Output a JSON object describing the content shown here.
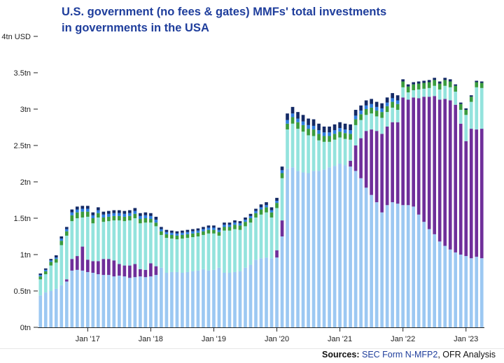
{
  "title": {
    "line1": "U.S. government (no fees & gates) MMFs' total investments",
    "line2": "in governments in the USA"
  },
  "source": {
    "label": "Sources:",
    "link_text": "SEC Form N-MFP2",
    "rest": ", OFR Analysis"
  },
  "colors": {
    "s0": "#9cc8f2",
    "s1": "#6f2f9a",
    "s2": "#93e3dd",
    "s3": "#3a9c3e",
    "s4": "#2f7fe0",
    "s5": "#142a66",
    "divider": "#ffffff",
    "title": "#1f3e9c"
  },
  "chart_data": {
    "type": "bar",
    "stacked": true,
    "title": "U.S. government (no fees & gates) MMFs' total investments in governments in the USA",
    "ylabel": "",
    "ylim": [
      0,
      4
    ],
    "yticks": [
      0,
      0.5,
      1,
      1.5,
      2,
      2.5,
      3,
      3.5,
      4
    ],
    "ytick_labels": [
      "0tn",
      "0.5tn",
      "1tn",
      "1.5tn",
      "2tn",
      "2.5tn",
      "3tn",
      "3.5tn",
      "4tn USD"
    ],
    "xtick_labels": [
      {
        "label": "Jan '17",
        "index": 9
      },
      {
        "label": "Jan '18",
        "index": 21
      },
      {
        "label": "Jan '19",
        "index": 33
      },
      {
        "label": "Jan '20",
        "index": 45
      },
      {
        "label": "Jan '21",
        "index": 57
      },
      {
        "label": "Jan '22",
        "index": 69
      },
      {
        "label": "Jan '23",
        "index": 81
      }
    ],
    "period": "Apr 2016 - Mar 2023, monthly",
    "series": [
      {
        "name": "series-1",
        "color": "#9cc8f2",
        "values": [
          0.44,
          0.48,
          0.5,
          0.53,
          0.58,
          0.63,
          0.78,
          0.79,
          0.78,
          0.76,
          0.75,
          0.73,
          0.72,
          0.72,
          0.7,
          0.71,
          0.7,
          0.68,
          0.69,
          0.7,
          0.69,
          0.7,
          0.72,
          0.82,
          0.75,
          0.76,
          0.76,
          0.75,
          0.76,
          0.77,
          0.78,
          0.8,
          0.78,
          0.79,
          0.82,
          0.75,
          0.75,
          0.76,
          0.77,
          0.82,
          0.86,
          0.93,
          0.95,
          0.96,
          0.95,
          0.96,
          1.25,
          2.18,
          2.2,
          2.15,
          2.13,
          2.12,
          2.15,
          2.15,
          2.17,
          2.2,
          2.22,
          2.25,
          2.23,
          2.21,
          2.15,
          2.05,
          1.92,
          1.82,
          1.72,
          1.58,
          1.68,
          1.72,
          1.7,
          1.68,
          1.68,
          1.66,
          1.55,
          1.45,
          1.35,
          1.28,
          1.18,
          1.12,
          1.07,
          1.03,
          1.0,
          0.98,
          0.95,
          0.97,
          0.95
        ]
      },
      {
        "name": "series-2",
        "color": "#6f2f9a",
        "values": [
          0,
          0,
          0,
          0,
          0,
          0.03,
          0.16,
          0.19,
          0.33,
          0.17,
          0.16,
          0.18,
          0.22,
          0.22,
          0.22,
          0.16,
          0.15,
          0.17,
          0.18,
          0.1,
          0.1,
          0.18,
          0.12,
          0,
          0,
          0,
          0,
          0,
          0,
          0,
          0,
          0,
          0,
          0,
          0,
          0,
          0,
          0,
          0,
          0,
          0,
          0,
          0,
          0,
          0,
          0.1,
          0.22,
          0,
          0,
          0,
          0,
          0,
          0,
          0,
          0,
          0,
          0,
          0,
          0,
          0.08,
          0.35,
          0.55,
          0.78,
          0.9,
          0.98,
          1.08,
          1.08,
          1.1,
          1.12,
          1.48,
          1.45,
          1.5,
          1.6,
          1.72,
          1.82,
          1.9,
          1.95,
          2.02,
          2.05,
          2.03,
          1.8,
          1.58,
          1.78,
          1.75,
          1.78
        ]
      },
      {
        "name": "series-3",
        "color": "#93e3dd",
        "values": [
          0.22,
          0.25,
          0.35,
          0.36,
          0.55,
          0.6,
          0.52,
          0.52,
          0.4,
          0.59,
          0.52,
          0.6,
          0.51,
          0.52,
          0.55,
          0.6,
          0.61,
          0.62,
          0.63,
          0.63,
          0.65,
          0.56,
          0.55,
          0.45,
          0.48,
          0.46,
          0.45,
          0.47,
          0.47,
          0.47,
          0.47,
          0.47,
          0.51,
          0.5,
          0.44,
          0.58,
          0.58,
          0.59,
          0.57,
          0.57,
          0.58,
          0.58,
          0.6,
          0.62,
          0.56,
          0.58,
          0.58,
          0.54,
          0.6,
          0.58,
          0.56,
          0.52,
          0.48,
          0.42,
          0.38,
          0.35,
          0.36,
          0.36,
          0.36,
          0.29,
          0.28,
          0.25,
          0.22,
          0.22,
          0.2,
          0.22,
          0.2,
          0.2,
          0.17,
          0.14,
          0.1,
          0.1,
          0.12,
          0.11,
          0.12,
          0.14,
          0.14,
          0.18,
          0.18,
          0.18,
          0.19,
          0.36,
          0.37,
          0.58,
          0.56
        ]
      },
      {
        "name": "series-4",
        "color": "#3a9c3e",
        "values": [
          0.04,
          0.04,
          0.05,
          0.05,
          0.06,
          0.06,
          0.08,
          0.08,
          0.08,
          0.07,
          0.07,
          0.06,
          0.06,
          0.06,
          0.06,
          0.06,
          0.06,
          0.06,
          0.06,
          0.06,
          0.06,
          0.05,
          0.05,
          0.05,
          0.05,
          0.05,
          0.05,
          0.05,
          0.05,
          0.05,
          0.05,
          0.05,
          0.05,
          0.05,
          0.05,
          0.05,
          0.05,
          0.06,
          0.06,
          0.06,
          0.06,
          0.06,
          0.07,
          0.07,
          0.07,
          0.07,
          0.07,
          0.08,
          0.09,
          0.09,
          0.09,
          0.09,
          0.09,
          0.09,
          0.08,
          0.08,
          0.08,
          0.08,
          0.08,
          0.08,
          0.08,
          0.08,
          0.08,
          0.08,
          0.08,
          0.08,
          0.08,
          0.08,
          0.08,
          0.08,
          0.08,
          0.08,
          0.08,
          0.08,
          0.08,
          0.08,
          0.08,
          0.08,
          0.08,
          0.08,
          0.08,
          0.07,
          0.07,
          0.07,
          0.07
        ]
      },
      {
        "name": "series-5",
        "color": "#2f7fe0",
        "values": [
          0.02,
          0.02,
          0.02,
          0.02,
          0.03,
          0.03,
          0.04,
          0.04,
          0.04,
          0.04,
          0.04,
          0.04,
          0.04,
          0.04,
          0.04,
          0.04,
          0.04,
          0.04,
          0.04,
          0.04,
          0.04,
          0.04,
          0.04,
          0.03,
          0.03,
          0.03,
          0.03,
          0.03,
          0.03,
          0.03,
          0.03,
          0.03,
          0.03,
          0.03,
          0.03,
          0.03,
          0.03,
          0.03,
          0.03,
          0.03,
          0.03,
          0.03,
          0.03,
          0.03,
          0.03,
          0.03,
          0.04,
          0.05,
          0.05,
          0.05,
          0.05,
          0.05,
          0.05,
          0.05,
          0.05,
          0.05,
          0.05,
          0.05,
          0.05,
          0.05,
          0.05,
          0.05,
          0.05,
          0.05,
          0.05,
          0.05,
          0.05,
          0.05,
          0.05,
          0,
          0,
          0,
          0,
          0,
          0,
          0,
          0,
          0,
          0,
          0,
          0,
          0,
          0,
          0,
          0
        ]
      },
      {
        "name": "series-6",
        "color": "#142a66",
        "values": [
          0.02,
          0.02,
          0.02,
          0.03,
          0.03,
          0.03,
          0.04,
          0.04,
          0.04,
          0.04,
          0.04,
          0.04,
          0.04,
          0.04,
          0.04,
          0.04,
          0.04,
          0.04,
          0.04,
          0.04,
          0.04,
          0.04,
          0.04,
          0.03,
          0.03,
          0.03,
          0.03,
          0.03,
          0.03,
          0.03,
          0.03,
          0.03,
          0.03,
          0.03,
          0.03,
          0.03,
          0.03,
          0.03,
          0.03,
          0.03,
          0.03,
          0.03,
          0.04,
          0.04,
          0.04,
          0.04,
          0.05,
          0.09,
          0.09,
          0.09,
          0.09,
          0.09,
          0.09,
          0.09,
          0.08,
          0.08,
          0.08,
          0.08,
          0.08,
          0.08,
          0.08,
          0.07,
          0.07,
          0.07,
          0.07,
          0.07,
          0.07,
          0.07,
          0.07,
          0.03,
          0.03,
          0.03,
          0.03,
          0.03,
          0.03,
          0.03,
          0.03,
          0.03,
          0.03,
          0.02,
          0.02,
          0.02,
          0.02,
          0.02,
          0.02
        ]
      }
    ]
  }
}
